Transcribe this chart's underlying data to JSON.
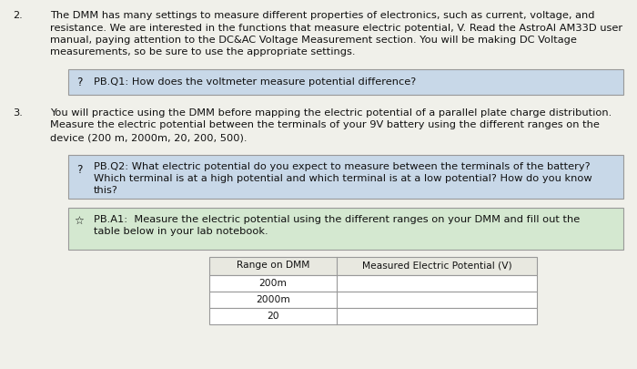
{
  "bg_color": "#f0f0ea",
  "white": "#ffffff",
  "box_blue_bg": "#c8d8e8",
  "box_green_bg": "#d4e8d0",
  "box_border": "#999999",
  "text_color": "#111111",
  "num2": "2.",
  "section2_text_lines": [
    "The DMM has many settings to measure different properties of electronics, such as current, voltage, and",
    "resistance. We are interested in the functions that measure electric potential, V. Read the AstroAI AM33D user",
    "manual, paying attention to the DC&AC Voltage Measurement section. You will be making DC Voltage",
    "measurements, so be sure to use the appropriate settings."
  ],
  "num3": "3.",
  "section3_text_lines": [
    "You will practice using the DMM before mapping the electric potential of a parallel plate charge distribution.",
    "Measure the electric potential between the terminals of your 9V battery using the different ranges on the",
    "device (200 m, 2000m, 20, 200, 500)."
  ],
  "pbq1_text": "PB.Q1: How does the voltmeter measure potential difference?",
  "pbq2_lines": [
    "PB.Q2: What electric potential do you expect to measure between the terminals of the battery?",
    "Which terminal is at a high potential and which terminal is at a low potential? How do you know",
    "this?"
  ],
  "pba1_lines": [
    "PB.A1:  Measure the electric potential using the different ranges on your DMM and fill out the",
    "table below in your lab notebook."
  ],
  "table_header_col1": "Range on DMM",
  "table_header_col2": "Measured Electric Potential (V)",
  "table_rows": [
    "200m",
    "2000m",
    "20"
  ],
  "font_size": 8.2
}
